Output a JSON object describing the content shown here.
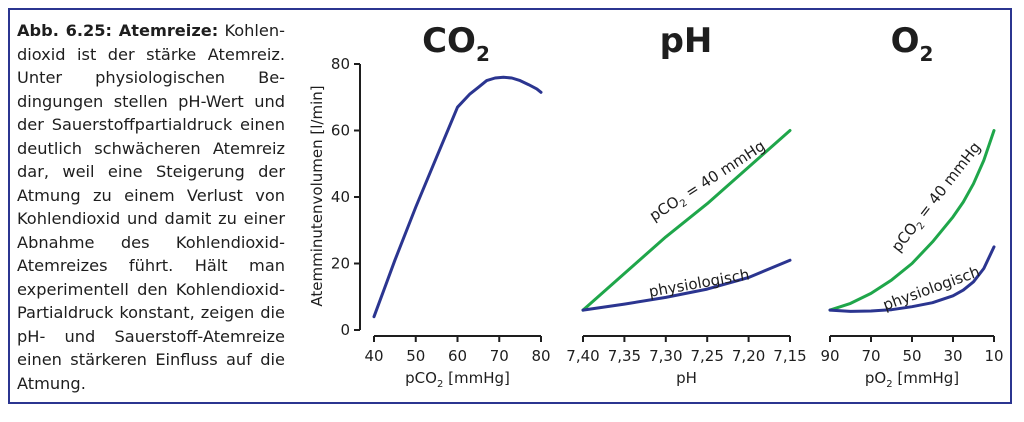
{
  "caption": {
    "label": "Abb. 6.25: Atemreize:",
    "text": "Kohlen­dioxid ist der stärke Atemreiz. Unter physiologischen Be­dingungen stellen pH-Wert und der Sauerstoffpartialdruck einen deutlich schwächeren Atem­reiz dar, weil eine Steigerung der Atmung zu einem Verlust von Kohlendioxid und damit zu einer Abnahme des Kohlen­dioxid-Atemreizes führt. Hält man experimentell den Kohlen­dioxid-Partialdruck konstant, zeigen die pH- und Sauer­stoff-Atemreize einen stärkeren Einfluss auf die Atmung."
  },
  "colors": {
    "frame": "#2b3590",
    "physiological": "#2b3590",
    "constant_co2": "#1fa64a",
    "axis": "#1e1e1e"
  },
  "ylabel": "Atemminutenvolumen [l/min]",
  "chart_data": [
    {
      "type": "line",
      "title": "CO₂",
      "xlabel": "pCO₂ [mmHg]",
      "xlim": [
        40,
        80
      ],
      "ylim": [
        0,
        80
      ],
      "xticks": [
        "40",
        "50",
        "60",
        "70",
        "80"
      ],
      "yticks": [
        "0",
        "20",
        "40",
        "60",
        "80"
      ],
      "series": [
        {
          "name": "",
          "color": "#2b3590",
          "x": [
            40,
            45,
            50,
            55,
            60,
            63,
            65,
            67,
            69,
            71,
            73,
            75,
            77,
            79,
            80
          ],
          "y": [
            4,
            21,
            37,
            52,
            67,
            71,
            73,
            75,
            75.8,
            76,
            75.8,
            75,
            73.8,
            72.5,
            71.5
          ]
        }
      ]
    },
    {
      "type": "line",
      "title": "pH",
      "xlabel": "pH",
      "xlim": [
        7.4,
        7.15
      ],
      "ylim": [
        0,
        80
      ],
      "xticks": [
        "7,40",
        "7,35",
        "7,30",
        "7,25",
        "7,20",
        "7,15"
      ],
      "series": [
        {
          "name": "pCO₂ = 40 mmHg",
          "label_parts": [
            "pCO",
            "2",
            " = 40 mmHg"
          ],
          "color": "#1fa64a",
          "x": [
            7.4,
            7.35,
            7.3,
            7.25,
            7.2,
            7.15
          ],
          "y": [
            6,
            17,
            28,
            38,
            49,
            60
          ]
        },
        {
          "name": "physiologisch",
          "color": "#2b3590",
          "x": [
            7.4,
            7.35,
            7.3,
            7.25,
            7.2,
            7.15
          ],
          "y": [
            6,
            7.8,
            9.8,
            12.3,
            15.8,
            21
          ]
        }
      ]
    },
    {
      "type": "line",
      "title": "O₂",
      "xlabel": "pO₂ [mmHg]",
      "xlim": [
        90,
        10
      ],
      "ylim": [
        0,
        80
      ],
      "xticks": [
        "90",
        "70",
        "50",
        "30",
        "10"
      ],
      "series": [
        {
          "name": "pCO₂ = 40 mmHg",
          "label_parts": [
            "pCO",
            "2",
            " = 40 mmHg"
          ],
          "color": "#1fa64a",
          "x": [
            90,
            80,
            70,
            60,
            50,
            40,
            30,
            25,
            20,
            15,
            10
          ],
          "y": [
            6,
            8,
            11,
            15,
            20,
            26.5,
            34,
            38.5,
            44,
            51,
            60
          ]
        },
        {
          "name": "physiologisch",
          "color": "#2b3590",
          "x": [
            90,
            80,
            70,
            60,
            50,
            40,
            30,
            25,
            20,
            15,
            10
          ],
          "y": [
            6,
            5.6,
            5.7,
            6.1,
            7,
            8.2,
            10.3,
            12,
            14.5,
            18.5,
            25
          ]
        }
      ]
    }
  ]
}
